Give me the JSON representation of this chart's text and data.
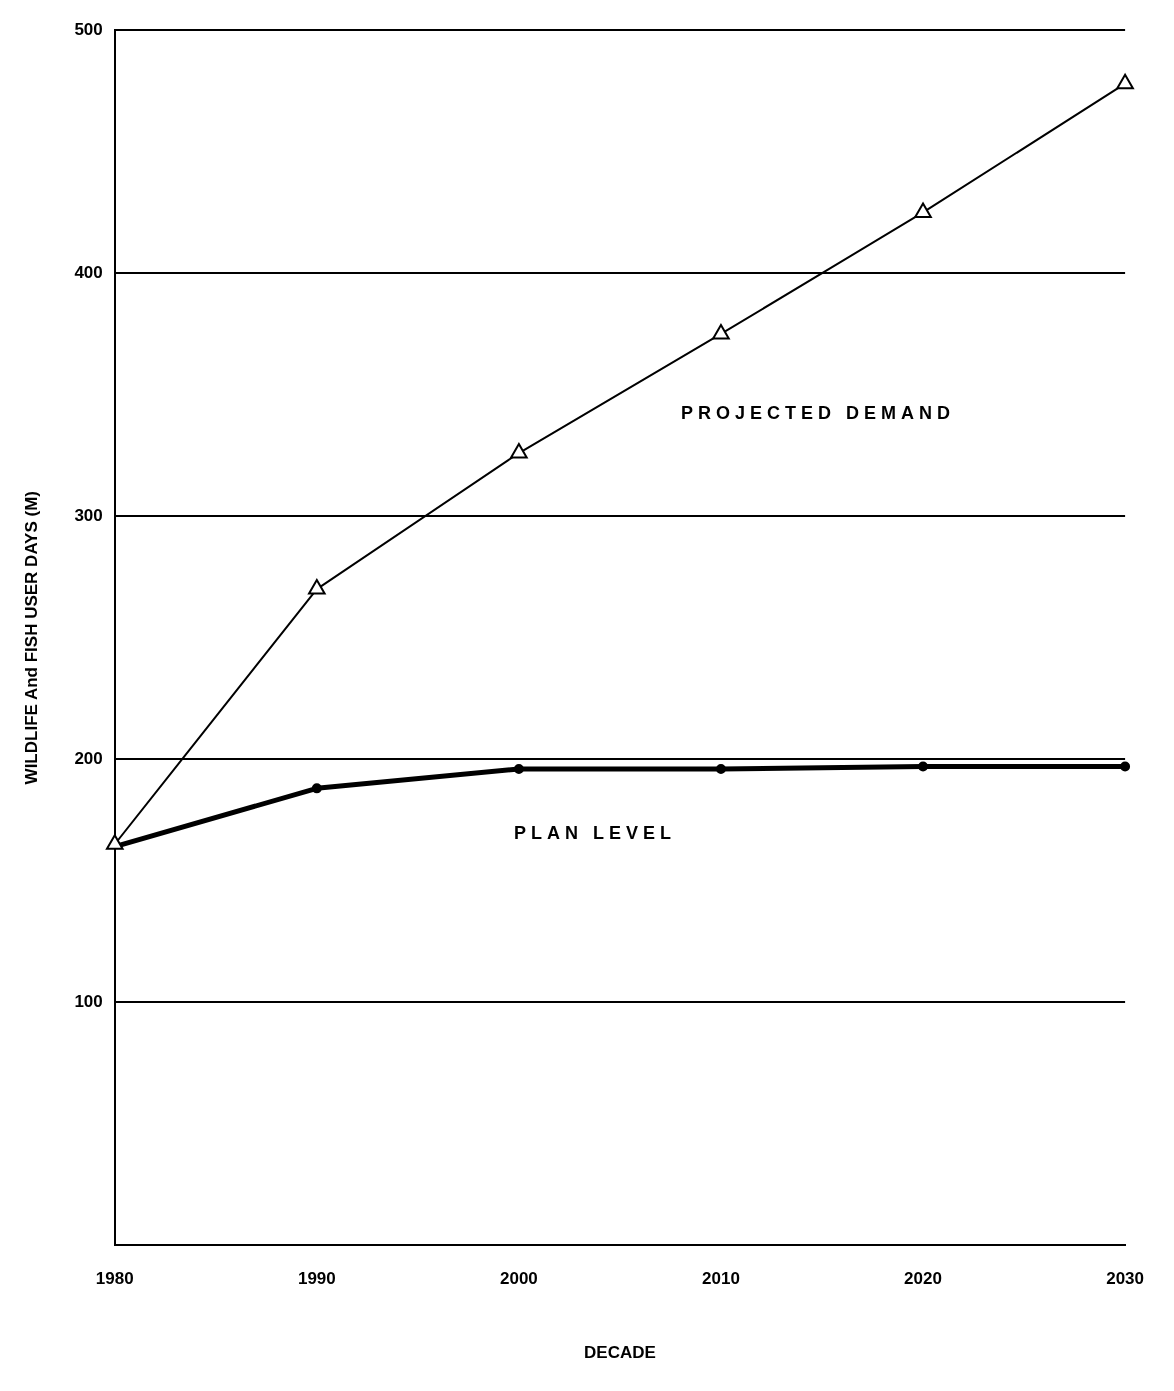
{
  "chart_data": {
    "type": "line",
    "xlabel": "DECADE",
    "ylabel": "WILDLIFE And FISH USER DAYS (M)",
    "x": [
      1980,
      1990,
      2000,
      2010,
      2020,
      2030
    ],
    "series": [
      {
        "name": "PROJECTED DEMAND",
        "color": "#000000",
        "marker": "triangle",
        "values": [
          165,
          270,
          326,
          375,
          425,
          478
        ]
      },
      {
        "name": "PLAN LEVEL",
        "color": "#000000",
        "marker": "circle",
        "values": [
          164,
          188,
          196,
          196,
          197,
          197
        ]
      }
    ],
    "xlim": [
      1980,
      2030
    ],
    "xticks": [
      1980,
      1990,
      2000,
      2010,
      2020,
      2030
    ],
    "ylim": [
      0,
      500
    ],
    "yticks": [
      {
        "value": 0,
        "label": null
      },
      100,
      200,
      300,
      400,
      500
    ],
    "grid": "y",
    "line_style": "solid"
  }
}
